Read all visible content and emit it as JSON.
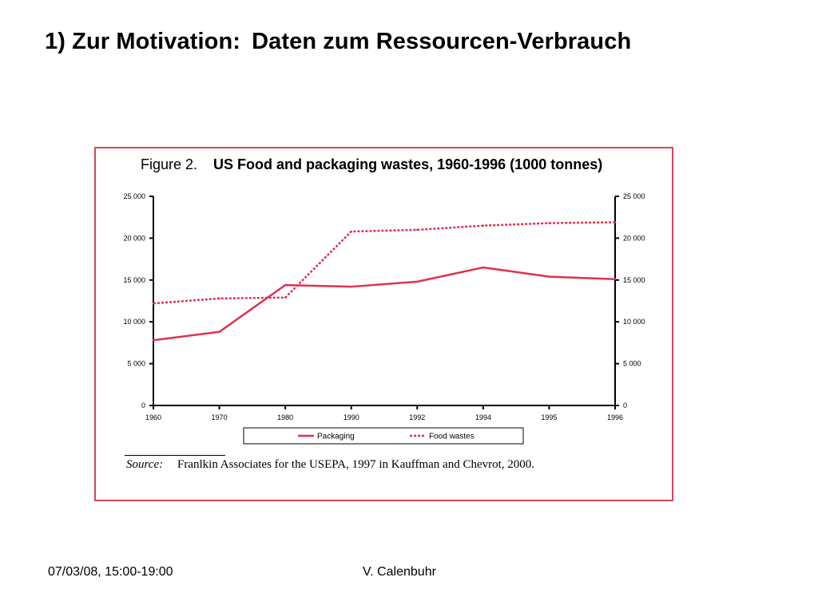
{
  "slide": {
    "title_part1": "1) Zur Motivation:",
    "title_part2": "Daten zum Ressourcen-Verbrauch",
    "footer_left": "07/03/08, 15:00-19:00",
    "footer_center": "V. Calenbuhr"
  },
  "figure": {
    "label": "Figure 2.",
    "source_label": "Source:",
    "source_text": "Franlkin Associates for the USEPA, 1997 in Kauffman and Chevrot, 2000."
  },
  "colors": {
    "frame": "#d8465a",
    "series": "#e03050",
    "axis": "#000000"
  },
  "chart_data": {
    "type": "line",
    "title": "US Food and packaging wastes, 1960-1996 (1000 tonnes)",
    "categories": [
      "1960",
      "1970",
      "1980",
      "1990",
      "1992",
      "1994",
      "1995",
      "1996"
    ],
    "series": [
      {
        "name": "Packaging",
        "style": "solid",
        "values": [
          7800,
          8800,
          14400,
          14200,
          14800,
          16500,
          15400,
          15100
        ]
      },
      {
        "name": "Food wastes",
        "style": "dotted",
        "values": [
          12200,
          12800,
          12900,
          20800,
          21000,
          21500,
          21800,
          21900
        ]
      }
    ],
    "ylim": [
      0,
      25000
    ],
    "yticks": [
      0,
      5000,
      10000,
      15000,
      20000,
      25000
    ],
    "ytick_labels": [
      "0",
      "5 000",
      "10 000",
      "15 000",
      "20 000",
      "25 000"
    ],
    "y_axis_sides": "both",
    "xlabel": "",
    "ylabel": "",
    "grid": false,
    "legend_position": "bottom"
  }
}
